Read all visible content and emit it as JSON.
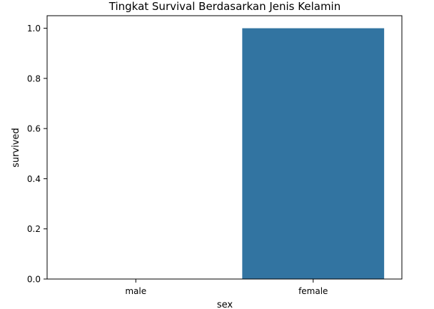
{
  "chart_data": {
    "type": "bar",
    "title": "Tingkat Survival Berdasarkan Jenis Kelamin",
    "xlabel": "sex",
    "ylabel": "survived",
    "categories": [
      "male",
      "female"
    ],
    "values": [
      0.0,
      1.0
    ],
    "ylim": [
      0.0,
      1.05
    ],
    "yticks": [
      "0.0",
      "0.2",
      "0.4",
      "0.6",
      "0.8",
      "1.0"
    ],
    "grid": false,
    "bar_color": "#3274a1"
  }
}
